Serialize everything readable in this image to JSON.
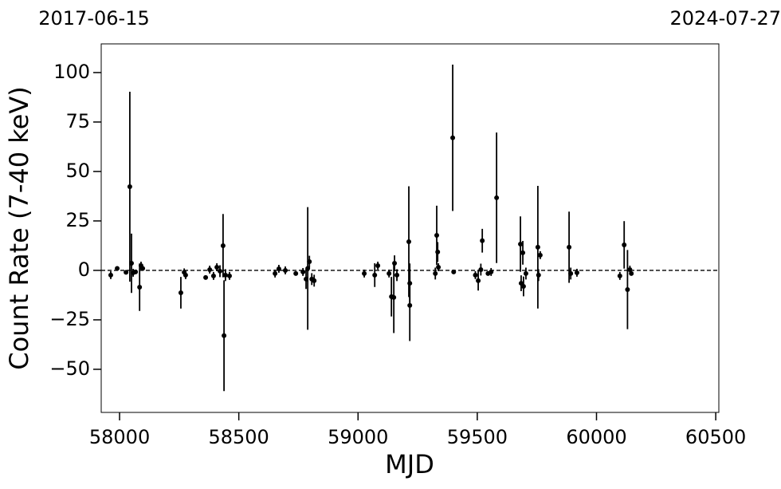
{
  "chart_data": {
    "type": "scatter",
    "annotations": [
      "2017-06-15",
      "2024-07-27"
    ],
    "xlabel": "MJD",
    "ylabel": "Count Rate (7-40 keV)",
    "xlim": [
      57923,
      60513
    ],
    "ylim": [
      -71.8,
      114.5
    ],
    "xticks": [
      58000,
      58500,
      59000,
      59500,
      60000,
      60500
    ],
    "yticks": [
      {
        "value": -50,
        "label": "−50"
      },
      {
        "value": -25,
        "label": "−25"
      },
      0,
      25,
      50,
      75,
      100
    ],
    "reference_line": 0,
    "color": "#000000",
    "x": [
      57963,
      57990,
      58027,
      58043,
      58050,
      58057,
      58067,
      58084,
      58090,
      58097,
      58257,
      58271,
      58277,
      58361,
      58378,
      58394,
      58408,
      58421,
      58434,
      58438,
      58444,
      58461,
      58652,
      58668,
      58695,
      58739,
      58769,
      58782,
      58789,
      58796,
      58806,
      58816,
      59026,
      59070,
      59083,
      59130,
      59140,
      59150,
      59153,
      59163,
      59213,
      59217,
      59217,
      59324,
      59330,
      59334,
      59337,
      59397,
      59401,
      59492,
      59504,
      59515,
      59521,
      59545,
      59558,
      59581,
      59681,
      59684,
      59691,
      59694,
      59704,
      59754,
      59764,
      59757,
      59885,
      59892,
      59918,
      60098,
      60116,
      60130,
      60140,
      60146
    ],
    "values": [
      -2.4,
      1,
      -1,
      42.3,
      3.6,
      -1.2,
      -0.8,
      -8.5,
      2.4,
      1,
      -11.3,
      -1,
      -2.4,
      -3.6,
      0.4,
      -2.8,
      1.6,
      -0.4,
      12.5,
      -33,
      -2.4,
      -2.8,
      -1.6,
      0.8,
      0,
      -1.6,
      -0.8,
      -4.4,
      1,
      4.4,
      -4.4,
      -5.2,
      -1.6,
      -2.4,
      2.4,
      -1.6,
      -13.3,
      -13.7,
      3.6,
      -2.4,
      14.5,
      -6.5,
      -17.7,
      -1.6,
      17.7,
      9.3,
      1.6,
      67,
      -0.8,
      -2.4,
      -5.2,
      0.4,
      15,
      -1.6,
      -0.8,
      36.7,
      13.3,
      -6.5,
      8.9,
      -8.1,
      -1.6,
      11.7,
      7.7,
      -2.4,
      11.7,
      -1.6,
      -1.2,
      -2.8,
      12.9,
      -9.7,
      0.4,
      -1.6
    ],
    "errors": [
      2,
      1,
      1,
      48,
      15,
      2,
      1,
      12,
      2,
      1,
      8,
      2,
      2,
      1,
      2,
      2,
      2,
      3,
      16,
      28,
      3,
      2,
      2,
      2,
      2,
      1,
      2,
      5,
      31,
      3,
      3,
      3,
      2,
      6,
      2,
      2,
      10,
      18,
      4,
      3,
      28,
      10,
      18,
      3,
      15,
      5,
      2,
      37,
      1,
      2,
      5,
      3,
      6,
      1,
      2,
      33,
      14,
      4,
      6,
      5,
      3,
      31,
      2,
      3,
      18,
      3,
      2,
      2,
      12,
      20,
      2,
      1
    ]
  }
}
